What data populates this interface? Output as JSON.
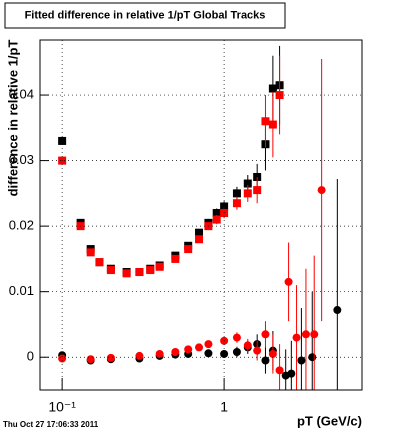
{
  "chart_data": {
    "type": "scatter",
    "title": "Fitted difference in relative 1/pT  Global Tracks",
    "xlabel": "pT (GeV/c)",
    "ylabel": "difference in relative 1/pT",
    "footer": "Thu Oct 27 17:06:33 2011",
    "xscale": "log",
    "xlim": [
      0.073,
      7.1
    ],
    "ylim": [
      -0.005,
      0.0484
    ],
    "xticks": [
      {
        "value": 0.1,
        "label": "10⁻¹"
      },
      1
    ],
    "yticks": [
      0,
      0.01,
      0.02,
      0.03,
      0.04
    ],
    "grid": true,
    "series": [
      {
        "color": "#000000",
        "marker": "square",
        "x": [
          0.1,
          0.13,
          0.15,
          0.17,
          0.2,
          0.25,
          0.3,
          0.35,
          0.4,
          0.5,
          0.6,
          0.7,
          0.8,
          0.9,
          1.0,
          1.2,
          1.4,
          1.6,
          1.8,
          2.0,
          2.2
        ],
        "values": [
          0.033,
          0.0205,
          0.0165,
          0.0145,
          0.0135,
          0.013,
          0.013,
          0.0135,
          0.014,
          0.0155,
          0.017,
          0.019,
          0.0205,
          0.022,
          0.023,
          0.025,
          0.0265,
          0.0275,
          0.0325,
          0.041,
          0.0415
        ],
        "errors": [
          0.0005,
          0.0004,
          0.0003,
          0.0003,
          0.0003,
          0.0003,
          0.0003,
          0.0003,
          0.0003,
          0.0004,
          0.0004,
          0.0005,
          0.0006,
          0.0007,
          0.0008,
          0.001,
          0.0013,
          0.002,
          0.004,
          0.005,
          0.006
        ]
      },
      {
        "color": "#ff0000",
        "marker": "square",
        "x": [
          0.1,
          0.13,
          0.15,
          0.17,
          0.2,
          0.25,
          0.3,
          0.35,
          0.4,
          0.5,
          0.6,
          0.7,
          0.8,
          0.9,
          1.0,
          1.2,
          1.4,
          1.6,
          1.8,
          2.0,
          2.2
        ],
        "values": [
          0.03,
          0.02,
          0.016,
          0.0145,
          0.0133,
          0.0128,
          0.013,
          0.0133,
          0.0138,
          0.015,
          0.0165,
          0.018,
          0.02,
          0.021,
          0.022,
          0.0235,
          0.025,
          0.0255,
          0.036,
          0.0355,
          0.04
        ],
        "errors": [
          0.0005,
          0.0004,
          0.0003,
          0.0003,
          0.0003,
          0.0003,
          0.0003,
          0.0003,
          0.0003,
          0.0004,
          0.0004,
          0.0005,
          0.0006,
          0.0007,
          0.0008,
          0.001,
          0.0013,
          0.002,
          0.004,
          0.005,
          0.006
        ]
      },
      {
        "color": "#000000",
        "marker": "circle",
        "x": [
          0.1,
          0.15,
          0.2,
          0.3,
          0.4,
          0.5,
          0.6,
          0.8,
          1.0,
          1.2,
          1.4,
          1.6,
          1.8,
          2.0,
          2.4,
          2.6,
          3.0,
          3.5,
          5.0
        ],
        "values": [
          0.0003,
          -0.0005,
          -0.0003,
          -0.0002,
          0.0002,
          0.0004,
          0.0005,
          0.0006,
          0.0005,
          0.0008,
          0.0015,
          0.002,
          -0.0005,
          0.001,
          -0.0028,
          -0.0025,
          -0.0005,
          0,
          0.0072
        ],
        "errors": [
          0.0005,
          0.0003,
          0.0003,
          0.0003,
          0.0003,
          0.0003,
          0.0004,
          0.0005,
          0.0006,
          0.0008,
          0.001,
          0.0015,
          0.002,
          0.003,
          0.004,
          0.005,
          0.008,
          0.01,
          0.02
        ]
      },
      {
        "color": "#ff0000",
        "marker": "circle",
        "x": [
          0.1,
          0.15,
          0.2,
          0.3,
          0.4,
          0.5,
          0.6,
          0.7,
          0.8,
          1.0,
          1.2,
          1.4,
          1.6,
          1.8,
          2.0,
          2.2,
          2.5,
          2.8,
          3.2,
          3.6,
          4.0
        ],
        "values": [
          -0.0002,
          -0.0003,
          -0.0001,
          0.0002,
          0.0005,
          0.0008,
          0.0012,
          0.0015,
          0.002,
          0.0025,
          0.003,
          0.0018,
          0.001,
          0.0035,
          0.0005,
          -0.002,
          0.0115,
          0.003,
          0.0035,
          0.0035,
          0.0255
        ],
        "errors": [
          0.0005,
          0.0003,
          0.0003,
          0.0003,
          0.0003,
          0.0003,
          0.0004,
          0.0004,
          0.0005,
          0.0006,
          0.0008,
          0.001,
          0.0015,
          0.002,
          0.003,
          0.004,
          0.006,
          0.008,
          0.01,
          0.012,
          0.02
        ]
      }
    ]
  }
}
